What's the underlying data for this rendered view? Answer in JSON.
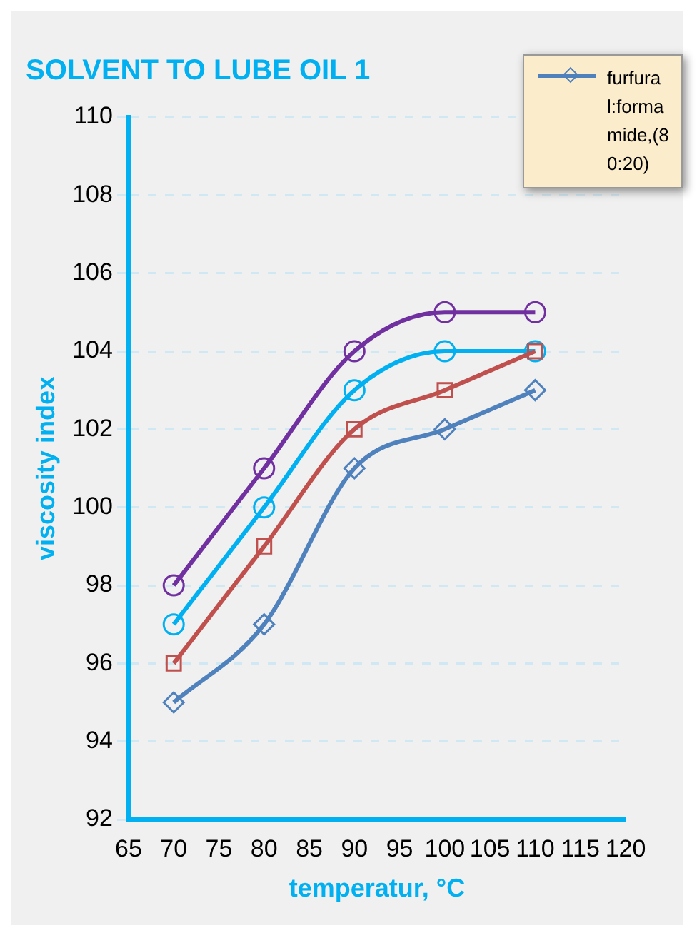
{
  "chart_data": {
    "type": "line",
    "title": "SOLVENT TO LUBE OIL 1",
    "xlabel": "temperatur, °C",
    "ylabel": "viscosity index",
    "x": [
      70,
      80,
      90,
      100,
      110
    ],
    "series": [
      {
        "name": "furfural:formamide,(80:20)",
        "color": "#4f81bd",
        "marker": "diamond",
        "values": [
          95,
          97,
          101,
          102,
          103
        ]
      },
      {
        "color": "#c0504d",
        "marker": "square",
        "values": [
          96,
          99,
          102,
          103,
          104
        ]
      },
      {
        "color": "#00b0f0",
        "marker": "circle",
        "values": [
          97,
          100,
          103,
          104,
          104
        ]
      },
      {
        "color": "#7030a0",
        "marker": "circle",
        "values": [
          98,
          101,
          104,
          105,
          105
        ]
      }
    ],
    "xlim": [
      65,
      120
    ],
    "xticks": [
      65,
      70,
      75,
      80,
      85,
      90,
      95,
      100,
      105,
      110,
      115,
      120
    ],
    "ylim": [
      92,
      110
    ],
    "yticks": [
      92,
      94,
      96,
      98,
      100,
      102,
      104,
      106,
      108,
      110
    ],
    "grid": "y",
    "legend": "top right",
    "line_style": "solid"
  }
}
